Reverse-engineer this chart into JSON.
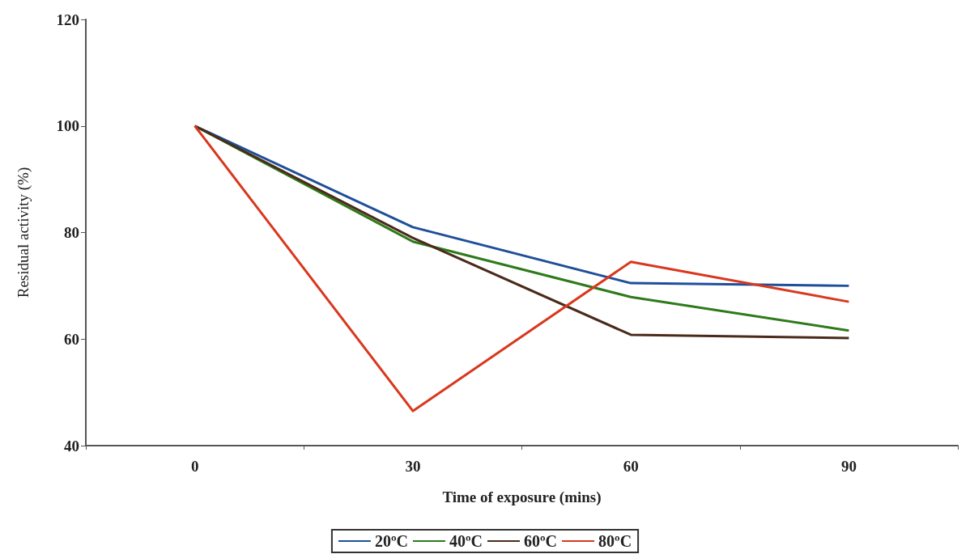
{
  "chart_data": {
    "type": "line",
    "xlabel": "Time of exposure (mins)",
    "ylabel": "Residual activity (%)",
    "categories": [
      "0",
      "30",
      "60",
      "90"
    ],
    "series": [
      {
        "name": "20ºC",
        "color": "#1f4e9a",
        "values": [
          100,
          81,
          70.5,
          70
        ]
      },
      {
        "name": "40ºC",
        "color": "#2e7a1a",
        "values": [
          100,
          78.3,
          67.9,
          61.6
        ]
      },
      {
        "name": "60ºC",
        "color": "#4a2a1a",
        "values": [
          100,
          79,
          60.8,
          60.2
        ]
      },
      {
        "name": "80ºC",
        "color": "#d9381e",
        "values": [
          100,
          46.5,
          74.5,
          67
        ]
      }
    ],
    "ylim": [
      40,
      120
    ],
    "yticks": [
      40,
      60,
      80,
      100,
      120
    ],
    "grid": false,
    "legend": "bottom",
    "marker": "none",
    "line_style": "solid"
  }
}
